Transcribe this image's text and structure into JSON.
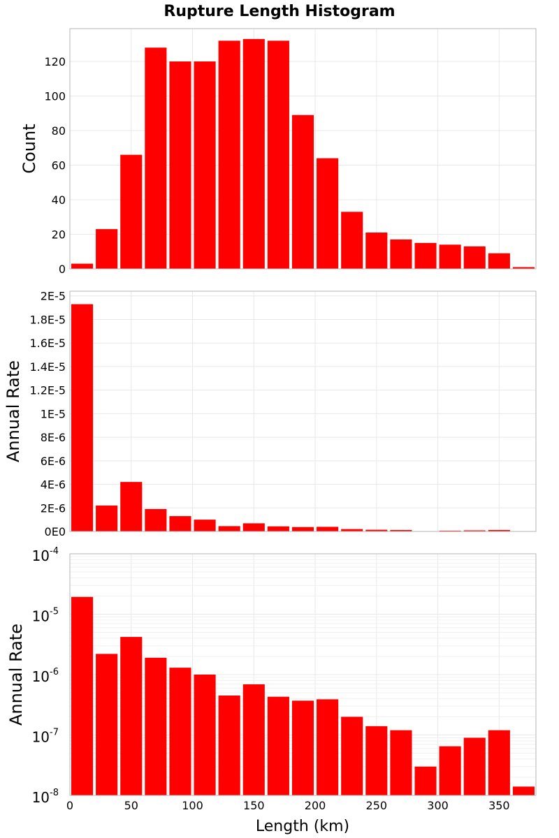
{
  "title": "Rupture Length Histogram",
  "xlabel": "Length (km)",
  "xlim": [
    0,
    380
  ],
  "x_ticks": [
    0,
    50,
    100,
    150,
    200,
    250,
    300,
    350
  ],
  "colors": {
    "bar": "#ff0000"
  },
  "chart_data": [
    {
      "type": "bar",
      "ylabel": "Count",
      "ylim": [
        0,
        139
      ],
      "y_ticks": [
        0,
        20,
        40,
        60,
        80,
        100,
        120
      ],
      "y_tick_labels": [
        "0",
        "20",
        "40",
        "60",
        "80",
        "100",
        "120"
      ],
      "bin_width": 20,
      "x": [
        10,
        30,
        50,
        70,
        90,
        110,
        130,
        150,
        170,
        190,
        210,
        230,
        250,
        270,
        290,
        310,
        330,
        350,
        370
      ],
      "values": [
        3,
        23,
        66,
        128,
        120,
        120,
        132,
        133,
        132,
        89,
        64,
        33,
        21,
        17,
        15,
        14,
        13,
        9,
        1
      ]
    },
    {
      "type": "bar",
      "ylabel": "Annual Rate",
      "ylim": [
        0,
        2.04e-05
      ],
      "y_ticks": [
        0,
        2e-06,
        4e-06,
        6e-06,
        8e-06,
        1e-05,
        1.2e-05,
        1.4e-05,
        1.6e-05,
        1.8e-05,
        2e-05
      ],
      "y_tick_labels": [
        "0E0",
        "2E-6",
        "4E-6",
        "6E-6",
        "8E-6",
        "1E-5",
        "1.2E-5",
        "1.4E-5",
        "1.6E-5",
        "1.8E-5",
        "2E-5"
      ],
      "bin_width": 20,
      "x": [
        10,
        30,
        50,
        70,
        90,
        110,
        130,
        150,
        170,
        190,
        210,
        230,
        250,
        270,
        290,
        310,
        330,
        350,
        370
      ],
      "values": [
        1.93e-05,
        2.2e-06,
        4.2e-06,
        1.9e-06,
        1.3e-06,
        1e-06,
        4.5e-07,
        6.9e-07,
        4.3e-07,
        3.7e-07,
        3.9e-07,
        2e-07,
        1.4e-07,
        1.2e-07,
        3e-08,
        6.5e-08,
        9e-08,
        1.2e-07,
        1.4e-08
      ]
    },
    {
      "type": "bar",
      "ylabel": "Annual Rate",
      "y_scale": "log",
      "ylim": [
        1e-08,
        0.0001
      ],
      "y_ticks": [
        1e-08,
        1e-07,
        1e-06,
        1e-05,
        0.0001
      ],
      "y_tick_exponents": [
        "-8",
        "-7",
        "-6",
        "-5",
        "-4"
      ],
      "y_tick_base": "10",
      "bin_width": 20,
      "x": [
        10,
        30,
        50,
        70,
        90,
        110,
        130,
        150,
        170,
        190,
        210,
        230,
        250,
        270,
        290,
        310,
        330,
        350,
        370
      ],
      "values": [
        1.93e-05,
        2.2e-06,
        4.2e-06,
        1.9e-06,
        1.3e-06,
        1e-06,
        4.5e-07,
        6.9e-07,
        4.3e-07,
        3.7e-07,
        3.9e-07,
        2e-07,
        1.4e-07,
        1.2e-07,
        3e-08,
        6.5e-08,
        9e-08,
        1.2e-07,
        1.4e-08
      ]
    }
  ]
}
